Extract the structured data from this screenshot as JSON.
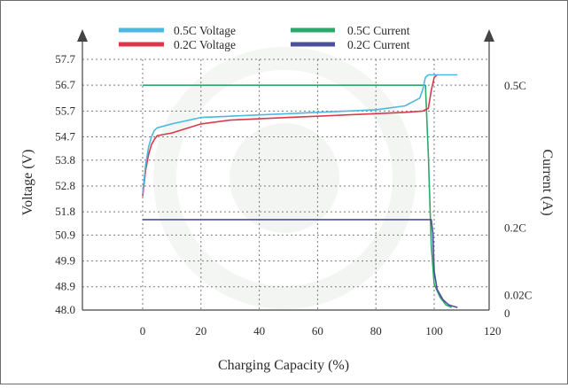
{
  "chart_data": {
    "type": "line",
    "title": "",
    "xlabel": "Charging Capacity (%)",
    "ylabel": "Voltage (V)",
    "y2label": "Current (A)",
    "xlim": [
      0,
      120
    ],
    "ylim": [
      48.0,
      57.7
    ],
    "xticks": [
      "0",
      "20",
      "40",
      "60",
      "80",
      "100",
      "120"
    ],
    "yticks": [
      "57.7",
      "56.7",
      "55.7",
      "54.7",
      "53.8",
      "52.8",
      "51.8",
      "50.9",
      "49.9",
      "48.9",
      "48.0"
    ],
    "y2ticks": [
      "0.5C",
      "0.2C",
      "0.02C",
      "0"
    ],
    "grid": true,
    "legend_position": "top",
    "series": [
      {
        "name": "0.5C Voltage",
        "axis": "left",
        "color": "#4fb6e2",
        "x": [
          0,
          1,
          2,
          3,
          4,
          5,
          10,
          20,
          30,
          40,
          50,
          60,
          70,
          80,
          90,
          95,
          96,
          97,
          98,
          100,
          108
        ],
        "y": [
          52.5,
          53.6,
          54.3,
          54.7,
          54.95,
          55.05,
          55.2,
          55.45,
          55.5,
          55.55,
          55.6,
          55.65,
          55.7,
          55.75,
          55.9,
          56.2,
          56.5,
          57.0,
          57.1,
          57.1,
          57.1
        ]
      },
      {
        "name": "0.2C Voltage",
        "axis": "left",
        "color": "#d93a4a",
        "x": [
          0,
          1,
          2,
          3,
          4,
          5,
          10,
          20,
          30,
          40,
          50,
          60,
          70,
          80,
          90,
          96,
          98,
          99,
          100,
          101
        ],
        "y": [
          52.4,
          53.4,
          54.0,
          54.4,
          54.6,
          54.75,
          54.85,
          55.2,
          55.35,
          55.4,
          55.45,
          55.5,
          55.55,
          55.6,
          55.65,
          55.7,
          55.8,
          56.5,
          57.0,
          57.1
        ]
      },
      {
        "name": "0.5C Current",
        "axis": "right",
        "color": "#2ea76a",
        "x": [
          0,
          97,
          98,
          99,
          100,
          102,
          104,
          106
        ],
        "y": [
          56.7,
          56.7,
          54.0,
          50.5,
          49.0,
          48.5,
          48.2,
          48.1
        ]
      },
      {
        "name": "0.2C Current",
        "axis": "right",
        "color": "#4e4f9a",
        "x": [
          0,
          99,
          99.5,
          100,
          101,
          103,
          105,
          108
        ],
        "y": [
          51.5,
          51.5,
          51.0,
          49.5,
          48.8,
          48.4,
          48.2,
          48.1
        ]
      }
    ]
  }
}
